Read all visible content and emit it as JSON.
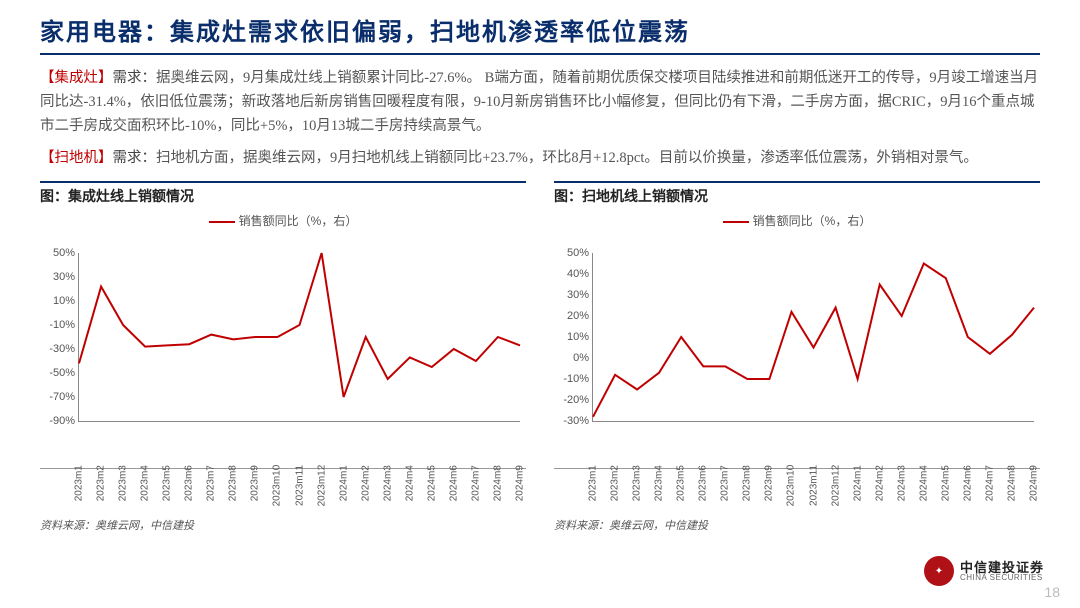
{
  "title": "家用电器：集成灶需求依旧偏弱，扫地机渗透率低位震荡",
  "para1": {
    "tag": "【集成灶】",
    "lead": "需求：",
    "text": "据奥维云网，9月集成灶线上销额累计同比-27.6%。 B端方面，随着前期优质保交楼项目陆续推进和前期低迷开工的传导，9月竣工增速当月同比达-31.4%，依旧低位震荡；新政落地后新房销售回暖程度有限，9-10月新房销售环比小幅修复，但同比仍有下滑，二手房方面，据CRIC，9月16个重点城市二手房成交面积环比-10%，同比+5%，10月13城二手房持续高景气。"
  },
  "para2": {
    "tag": "【扫地机】",
    "lead": "需求：",
    "text": "扫地机方面，据奥维云网，9月扫地机线上销额同比+23.7%，环比8月+12.8pct。目前以价换量，渗透率低位震荡，外销相对景气。"
  },
  "chartLeft": {
    "title": "图：集成灶线上销额情况",
    "legend": "销售额同比（%，右）",
    "source": "资料来源：奥维云网，中信建投",
    "type": "line",
    "color": "#c00000",
    "line_width": 2,
    "ylim": [
      -90,
      50
    ],
    "yticks": [
      50,
      30,
      10,
      -10,
      -30,
      -50,
      -70,
      -90
    ],
    "ytick_labels": [
      "50%",
      "30%",
      "10%",
      "-10%",
      "-30%",
      "-50%",
      "-70%",
      "-90%"
    ],
    "categories": [
      "2023m1",
      "2023m2",
      "2023m3",
      "2023m4",
      "2023m5",
      "2023m6",
      "2023m7",
      "2023m8",
      "2023m9",
      "2023m10",
      "2023m11",
      "2023m12",
      "2024m1",
      "2024m2",
      "2024m3",
      "2024m4",
      "2024m5",
      "2024m6",
      "2024m7",
      "2024m8",
      "2024m9"
    ],
    "values": [
      -42,
      22,
      -10,
      -28,
      -27,
      -26,
      -18,
      -22,
      -20,
      -20,
      -10,
      50,
      -70,
      -20,
      -55,
      -37,
      -45,
      -30,
      -40,
      -20,
      -27
    ]
  },
  "chartRight": {
    "title": "图：扫地机线上销额情况",
    "legend": "销售额同比（%，右）",
    "source": "资料来源：奥维云网，中信建投",
    "type": "line",
    "color": "#c00000",
    "line_width": 2,
    "ylim": [
      -30,
      50
    ],
    "yticks": [
      50,
      40,
      30,
      20,
      10,
      0,
      -10,
      -20,
      -30
    ],
    "ytick_labels": [
      "50%",
      "40%",
      "30%",
      "20%",
      "10%",
      "0%",
      "-10%",
      "-20%",
      "-30%"
    ],
    "categories": [
      "2023m1",
      "2023m2",
      "2023m3",
      "2023m4",
      "2023m5",
      "2023m6",
      "2023m7",
      "2023m8",
      "2023m9",
      "2023m10",
      "2023m11",
      "2023m12",
      "2024m1",
      "2024m2",
      "2024m3",
      "2024m4",
      "2024m5",
      "2024m6",
      "2024m7",
      "2024m8",
      "2024m9"
    ],
    "values": [
      -28,
      -8,
      -15,
      -7,
      10,
      -4,
      -4,
      -10,
      -10,
      22,
      5,
      24,
      -10,
      35,
      20,
      45,
      38,
      10,
      2,
      11,
      24
    ]
  },
  "logo": {
    "cn": "中信建投证券",
    "en": "CHINA SECURITIES"
  },
  "pageNumber": "18"
}
